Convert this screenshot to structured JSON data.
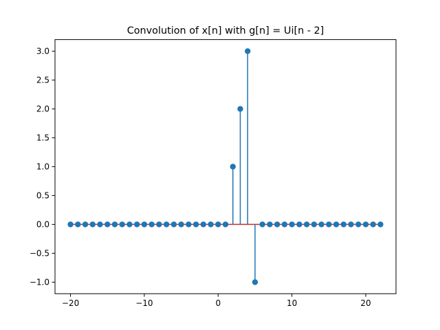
{
  "chart_data": {
    "type": "stem",
    "title": "Convolution of x[n] with g[n] = Ui[n - 2]",
    "xlabel": "",
    "ylabel": "",
    "xlim": [
      -22.1,
      24.1
    ],
    "ylim": [
      -1.2,
      3.2
    ],
    "x_ticks": [
      -20,
      -10,
      0,
      10,
      20
    ],
    "x_tick_labels": [
      "−20",
      "−10",
      "0",
      "10",
      "20"
    ],
    "y_ticks": [
      -1.0,
      -0.5,
      0.0,
      0.5,
      1.0,
      1.5,
      2.0,
      2.5,
      3.0
    ],
    "y_tick_labels": [
      "−1.0",
      "−0.5",
      "0.0",
      "0.5",
      "1.0",
      "1.5",
      "2.0",
      "2.5",
      "3.0"
    ],
    "grid": false,
    "legend": "none",
    "colors": {
      "stem": "#1f77b4",
      "baseline": "#d62728"
    },
    "x": [
      -20,
      -19,
      -18,
      -17,
      -16,
      -15,
      -14,
      -13,
      -12,
      -11,
      -10,
      -9,
      -8,
      -7,
      -6,
      -5,
      -4,
      -3,
      -2,
      -1,
      0,
      1,
      2,
      3,
      4,
      5,
      6,
      7,
      8,
      9,
      10,
      11,
      12,
      13,
      14,
      15,
      16,
      17,
      18,
      19,
      20,
      21,
      22
    ],
    "values": [
      0,
      0,
      0,
      0,
      0,
      0,
      0,
      0,
      0,
      0,
      0,
      0,
      0,
      0,
      0,
      0,
      0,
      0,
      0,
      0,
      0,
      0,
      1,
      2,
      3,
      -1,
      0,
      0,
      0,
      0,
      0,
      0,
      0,
      0,
      0,
      0,
      0,
      0,
      0,
      0,
      0,
      0,
      0
    ]
  }
}
